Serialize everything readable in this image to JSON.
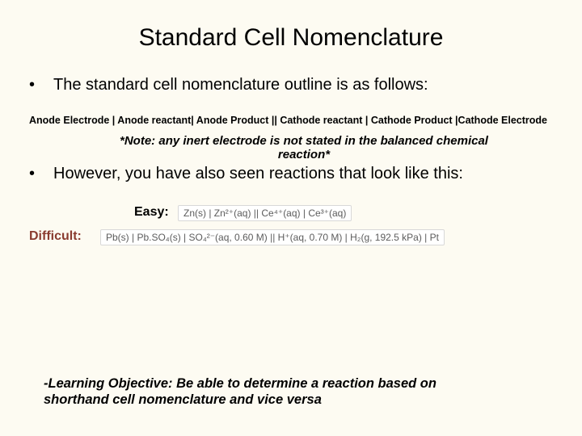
{
  "colors": {
    "background": "#fdfbf2",
    "text": "#000000",
    "difficult_label": "#8a3b2f",
    "box_bg": "#ffffff",
    "box_border": "#d8d8d8",
    "box_text": "#5c5c5c"
  },
  "title": "Standard Cell Nomenclature",
  "bullets": [
    "The standard cell nomenclature outline is as follows:",
    "However, you have also seen reactions that look like this:"
  ],
  "nomenclature_template": "Anode Electrode | Anode reactant| Anode Product || Cathode reactant | Cathode Product |Cathode Electrode",
  "note": "*Note: any inert electrode is not stated in the balanced chemical reaction*",
  "examples": {
    "easy_label": "Easy:",
    "easy_notation": "Zn(s) | Zn²⁺(aq) || Ce⁴⁺(aq) | Ce³⁺(aq)",
    "difficult_label": "Difficult:",
    "difficult_notation": "Pb(s) | Pb.SO₄(s) | SO₄²⁻(aq, 0.60 M) || H⁺(aq, 0.70 M) | H₂(g, 192.5 kPa) | Pt"
  },
  "learning_objective": "-Learning Objective: Be able to determine a reaction based on shorthand cell nomenclature and vice versa"
}
